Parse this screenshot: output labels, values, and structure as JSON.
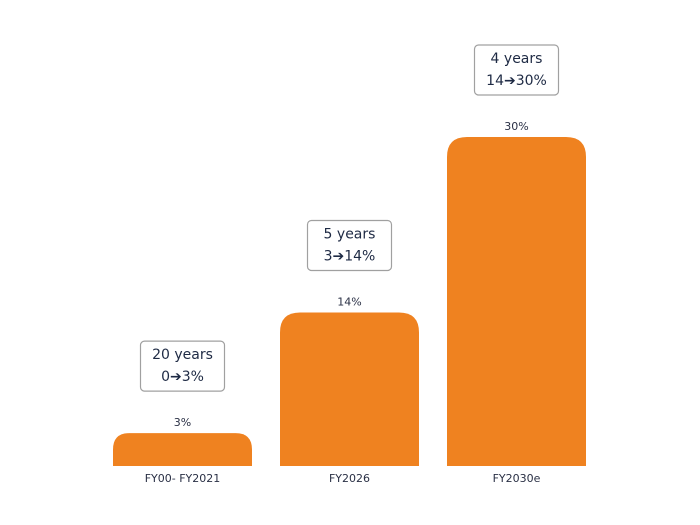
{
  "chart_data": {
    "type": "bar",
    "categories": [
      "FY00- FY2021",
      "FY2026",
      "FY2030e"
    ],
    "values": [
      3,
      14,
      30
    ],
    "value_labels": [
      "3%",
      "14%",
      "30%"
    ],
    "color": "#ef8220",
    "ylim": [
      0,
      30
    ],
    "annotations": [
      {
        "lines": [
          "20 years",
          "0➔3%"
        ]
      },
      {
        "lines": [
          "5 years",
          "3➔14%"
        ]
      },
      {
        "lines": [
          "4 years",
          "14➔30%"
        ]
      }
    ]
  }
}
